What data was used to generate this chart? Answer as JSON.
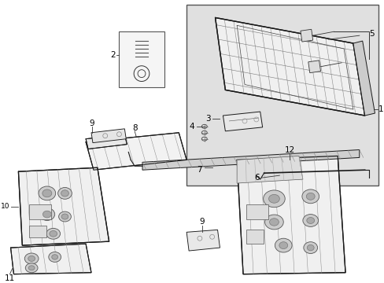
{
  "bg_color": "#ffffff",
  "box_bg": "#e8e8e8",
  "line_color": "#1a1a1a",
  "fig_width": 4.89,
  "fig_height": 3.6,
  "dpi": 100
}
